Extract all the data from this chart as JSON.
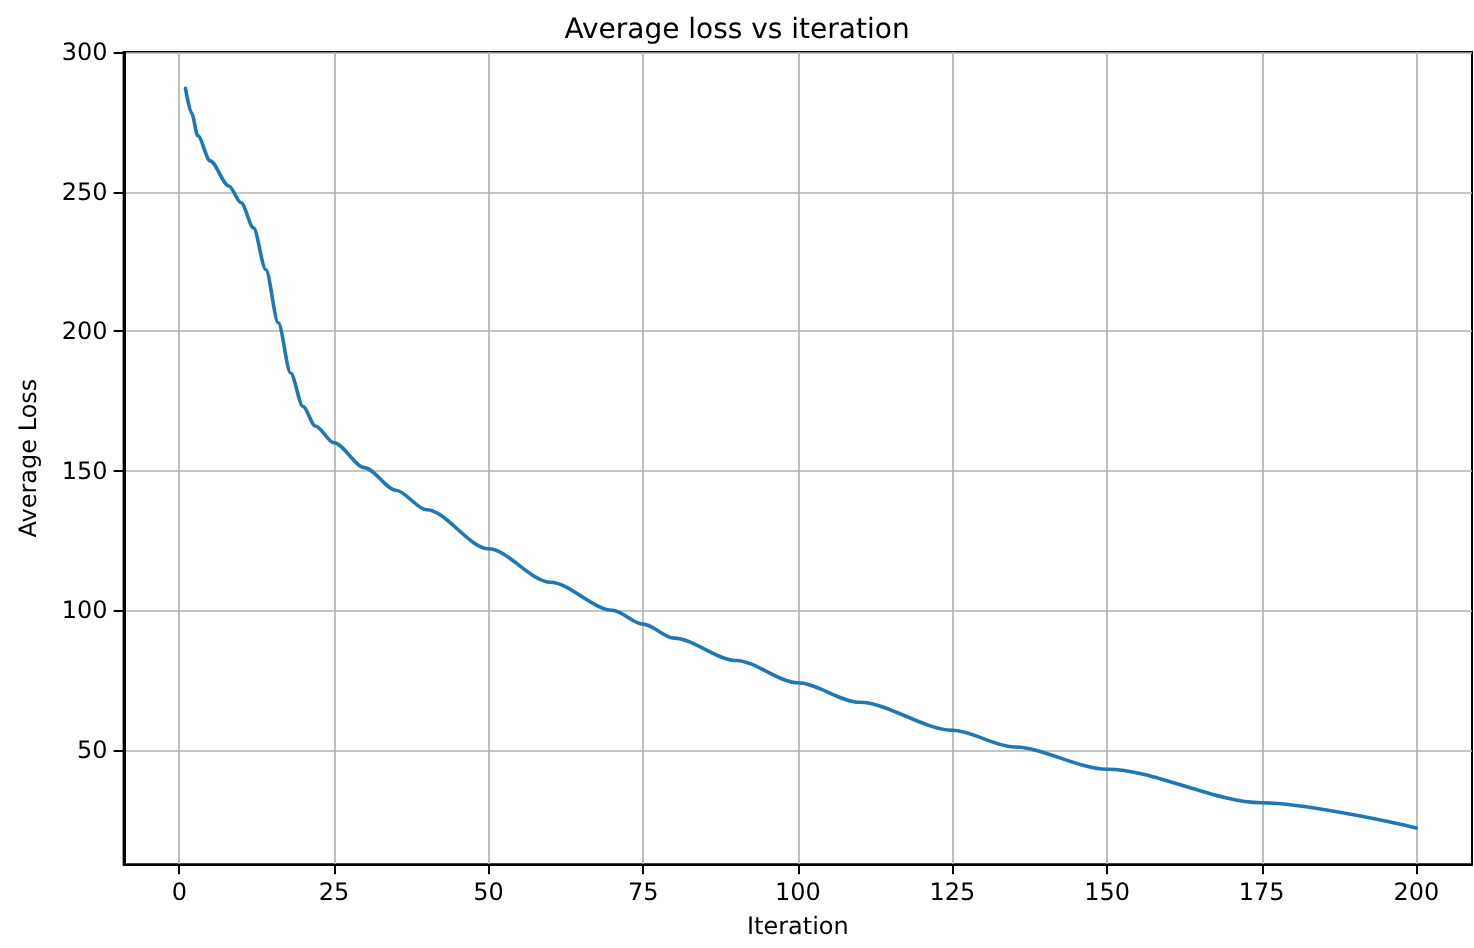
{
  "chart_data": {
    "type": "line",
    "title": "Average loss vs iteration",
    "xlabel": "Iteration",
    "ylabel": "Average Loss",
    "x": [
      1,
      2,
      3,
      5,
      8,
      10,
      12,
      14,
      16,
      18,
      20,
      22,
      25,
      30,
      35,
      40,
      50,
      60,
      70,
      75,
      80,
      90,
      100,
      110,
      125,
      135,
      150,
      175,
      200
    ],
    "series": [
      {
        "color": "#1f77b4",
        "values": [
          287,
          278,
          270,
          261,
          252,
          246,
          237,
          222,
          203,
          185,
          173,
          166,
          160,
          151,
          143,
          136,
          122,
          110,
          100,
          95,
          90,
          82,
          74,
          67,
          57,
          51,
          43,
          31,
          22
        ]
      }
    ],
    "xlim": [
      -9,
      209
    ],
    "ylim": [
      9,
      300
    ],
    "xticks": [
      0,
      25,
      50,
      75,
      100,
      125,
      150,
      175,
      200
    ],
    "yticks": [
      50,
      100,
      150,
      200,
      250,
      300
    ],
    "grid": true,
    "marker": "none",
    "line_style": "solid"
  }
}
